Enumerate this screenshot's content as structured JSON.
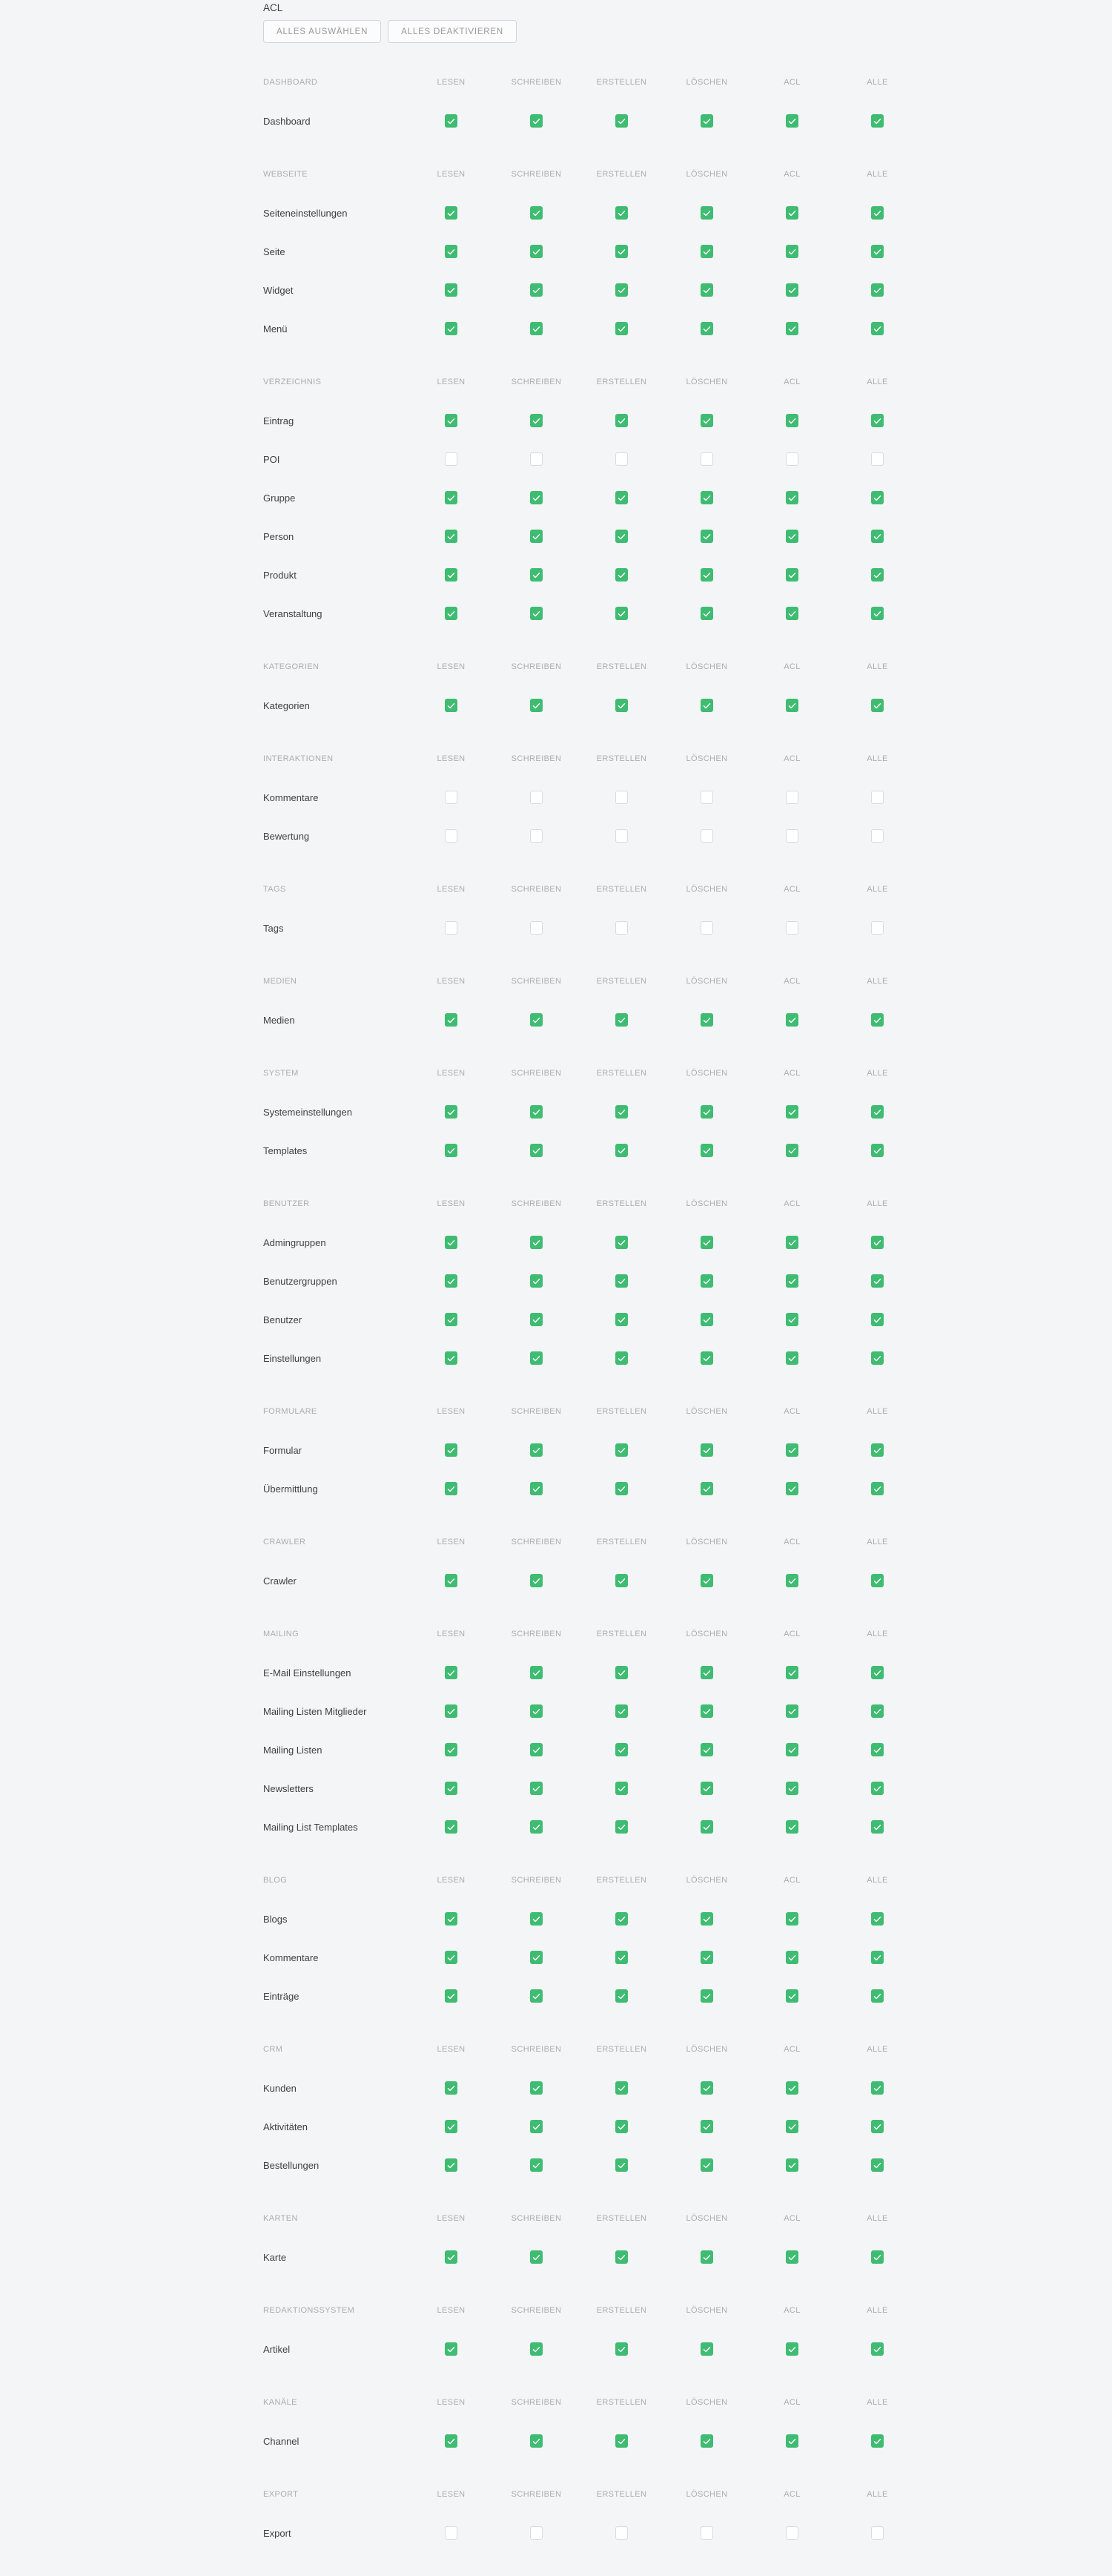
{
  "page": {
    "title": "ACL"
  },
  "toolbar": {
    "select_all_label": "ALLES AUSWÄHLEN",
    "deactivate_all_label": "ALLES DEAKTIVIEREN"
  },
  "colors": {
    "checkbox_checked": "#3fbc72",
    "checkbox_unchecked_border": "#d9dbdd",
    "background": "#f4f5f7"
  },
  "acl": {
    "columns": [
      "LESEN",
      "SCHREIBEN",
      "ERSTELLEN",
      "LÖSCHEN",
      "ACL",
      "ALLE"
    ],
    "column_keys": [
      "lesen",
      "schreiben",
      "erstellen",
      "loeschen",
      "acl",
      "alle"
    ],
    "sections": [
      {
        "name": "DASHBOARD",
        "rows": [
          {
            "label": "Dashboard",
            "cells": [
              true,
              true,
              true,
              true,
              true,
              true
            ]
          }
        ]
      },
      {
        "name": "WEBSEITE",
        "rows": [
          {
            "label": "Seiteneinstellungen",
            "cells": [
              true,
              true,
              true,
              true,
              true,
              true
            ]
          },
          {
            "label": "Seite",
            "cells": [
              true,
              true,
              true,
              true,
              true,
              true
            ]
          },
          {
            "label": "Widget",
            "cells": [
              true,
              true,
              true,
              true,
              true,
              true
            ]
          },
          {
            "label": "Menü",
            "cells": [
              true,
              true,
              true,
              true,
              true,
              true
            ]
          }
        ]
      },
      {
        "name": "VERZEICHNIS",
        "rows": [
          {
            "label": "Eintrag",
            "cells": [
              true,
              true,
              true,
              true,
              true,
              true
            ]
          },
          {
            "label": "POI",
            "cells": [
              false,
              false,
              false,
              false,
              false,
              false
            ]
          },
          {
            "label": "Gruppe",
            "cells": [
              true,
              true,
              true,
              true,
              true,
              true
            ]
          },
          {
            "label": "Person",
            "cells": [
              true,
              true,
              true,
              true,
              true,
              true
            ]
          },
          {
            "label": "Produkt",
            "cells": [
              true,
              true,
              true,
              true,
              true,
              true
            ]
          },
          {
            "label": "Veranstaltung",
            "cells": [
              true,
              true,
              true,
              true,
              true,
              true
            ]
          }
        ]
      },
      {
        "name": "KATEGORIEN",
        "rows": [
          {
            "label": "Kategorien",
            "cells": [
              true,
              true,
              true,
              true,
              true,
              true
            ]
          }
        ]
      },
      {
        "name": "INTERAKTIONEN",
        "rows": [
          {
            "label": "Kommentare",
            "cells": [
              false,
              false,
              false,
              false,
              false,
              false
            ]
          },
          {
            "label": "Bewertung",
            "cells": [
              false,
              false,
              false,
              false,
              false,
              false
            ]
          }
        ]
      },
      {
        "name": "TAGS",
        "rows": [
          {
            "label": "Tags",
            "cells": [
              false,
              false,
              false,
              false,
              false,
              false
            ]
          }
        ]
      },
      {
        "name": "MEDIEN",
        "rows": [
          {
            "label": "Medien",
            "cells": [
              true,
              true,
              true,
              true,
              true,
              true
            ]
          }
        ]
      },
      {
        "name": "SYSTEM",
        "rows": [
          {
            "label": "Systemeinstellungen",
            "cells": [
              true,
              true,
              true,
              true,
              true,
              true
            ]
          },
          {
            "label": "Templates",
            "cells": [
              true,
              true,
              true,
              true,
              true,
              true
            ]
          }
        ]
      },
      {
        "name": "BENUTZER",
        "rows": [
          {
            "label": "Admingruppen",
            "cells": [
              true,
              true,
              true,
              true,
              true,
              true
            ]
          },
          {
            "label": "Benutzergruppen",
            "cells": [
              true,
              true,
              true,
              true,
              true,
              true
            ]
          },
          {
            "label": "Benutzer",
            "cells": [
              true,
              true,
              true,
              true,
              true,
              true
            ]
          },
          {
            "label": "Einstellungen",
            "cells": [
              true,
              true,
              true,
              true,
              true,
              true
            ]
          }
        ]
      },
      {
        "name": "FORMULARE",
        "rows": [
          {
            "label": "Formular",
            "cells": [
              true,
              true,
              true,
              true,
              true,
              true
            ]
          },
          {
            "label": "Übermittlung",
            "cells": [
              true,
              true,
              true,
              true,
              true,
              true
            ]
          }
        ]
      },
      {
        "name": "CRAWLER",
        "rows": [
          {
            "label": "Crawler",
            "cells": [
              true,
              true,
              true,
              true,
              true,
              true
            ]
          }
        ]
      },
      {
        "name": "MAILING",
        "rows": [
          {
            "label": "E-Mail Einstellungen",
            "cells": [
              true,
              true,
              true,
              true,
              true,
              true
            ]
          },
          {
            "label": "Mailing Listen Mitglieder",
            "cells": [
              true,
              true,
              true,
              true,
              true,
              true
            ]
          },
          {
            "label": "Mailing Listen",
            "cells": [
              true,
              true,
              true,
              true,
              true,
              true
            ]
          },
          {
            "label": "Newsletters",
            "cells": [
              true,
              true,
              true,
              true,
              true,
              true
            ]
          },
          {
            "label": "Mailing List Templates",
            "cells": [
              true,
              true,
              true,
              true,
              true,
              true
            ]
          }
        ]
      },
      {
        "name": "BLOG",
        "rows": [
          {
            "label": "Blogs",
            "cells": [
              true,
              true,
              true,
              true,
              true,
              true
            ]
          },
          {
            "label": "Kommentare",
            "cells": [
              true,
              true,
              true,
              true,
              true,
              true
            ]
          },
          {
            "label": "Einträge",
            "cells": [
              true,
              true,
              true,
              true,
              true,
              true
            ]
          }
        ]
      },
      {
        "name": "CRM",
        "rows": [
          {
            "label": "Kunden",
            "cells": [
              true,
              true,
              true,
              true,
              true,
              true
            ]
          },
          {
            "label": "Aktivitäten",
            "cells": [
              true,
              true,
              true,
              true,
              true,
              true
            ]
          },
          {
            "label": "Bestellungen",
            "cells": [
              true,
              true,
              true,
              true,
              true,
              true
            ]
          }
        ]
      },
      {
        "name": "KARTEN",
        "rows": [
          {
            "label": "Karte",
            "cells": [
              true,
              true,
              true,
              true,
              true,
              true
            ]
          }
        ]
      },
      {
        "name": "REDAKTIONSSYSTEM",
        "rows": [
          {
            "label": "Artikel",
            "cells": [
              true,
              true,
              true,
              true,
              true,
              true
            ]
          }
        ]
      },
      {
        "name": "KANÄLE",
        "rows": [
          {
            "label": "Channel",
            "cells": [
              true,
              true,
              true,
              true,
              true,
              true
            ]
          }
        ]
      },
      {
        "name": "EXPORT",
        "rows": [
          {
            "label": "Export",
            "cells": [
              false,
              false,
              false,
              false,
              false,
              false
            ]
          }
        ]
      }
    ]
  }
}
